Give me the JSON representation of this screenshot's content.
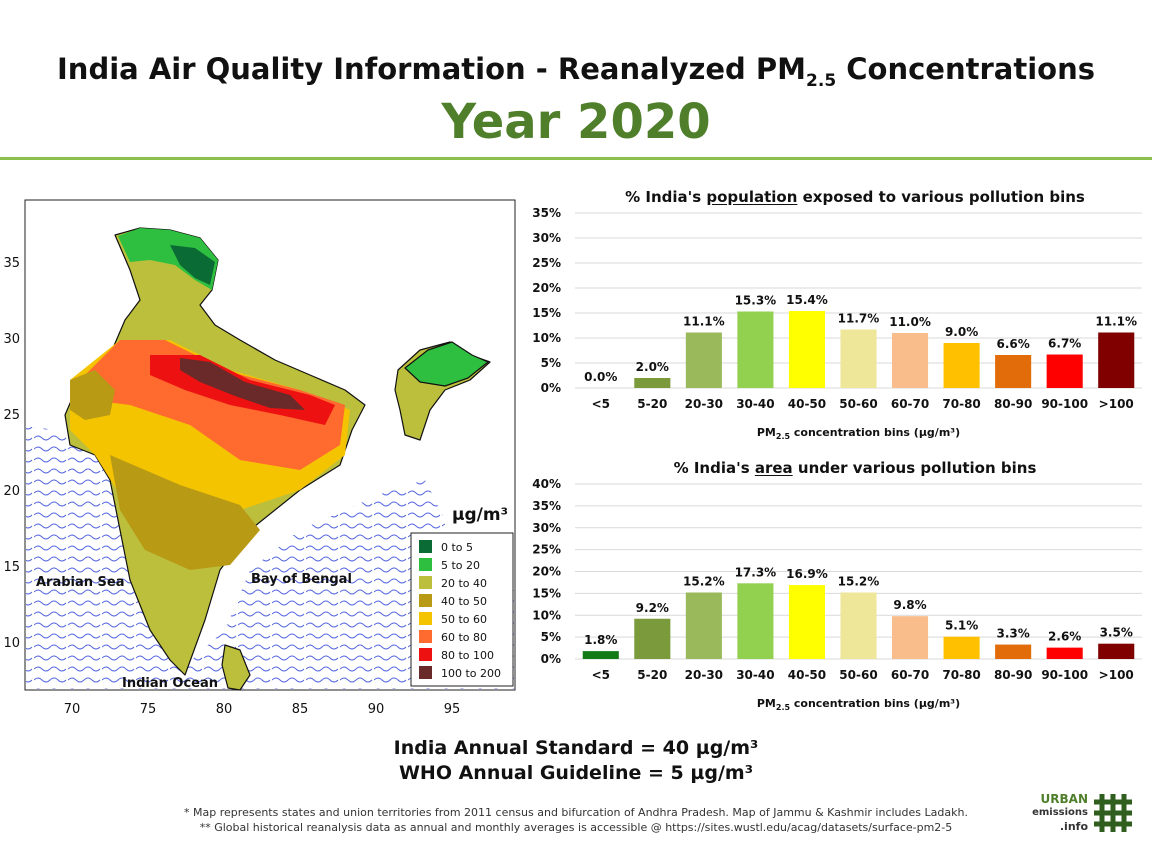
{
  "header": {
    "title_prefix": "India Air Quality Information - Reanalyzed PM",
    "title_sub": "2.5",
    "title_suffix": " Concentrations",
    "year_label": "Year 2020"
  },
  "map": {
    "x_ticks": [
      "70",
      "75",
      "80",
      "85",
      "90",
      "95"
    ],
    "y_ticks": [
      "35",
      "30",
      "25",
      "20",
      "15",
      "10"
    ],
    "labels": {
      "arabian_sea": "Arabian Sea",
      "bay_of_bengal": "Bay of Bengal",
      "indian_ocean": "Indian Ocean",
      "unit": "µg/m³"
    },
    "legend": [
      {
        "label": "0  to  5",
        "color": "#0b6b34"
      },
      {
        "label": "5  to  20",
        "color": "#2fbf40"
      },
      {
        "label": "20  to  40",
        "color": "#bcbf3c"
      },
      {
        "label": "40  to  50",
        "color": "#b89a14"
      },
      {
        "label": "50  to  60",
        "color": "#f5c400"
      },
      {
        "label": "60  to  80",
        "color": "#ff6a2e"
      },
      {
        "label": "80  to  100",
        "color": "#ee1111"
      },
      {
        "label": "100  to  200",
        "color": "#6b2a2a"
      }
    ]
  },
  "chart_data": [
    {
      "type": "bar",
      "title_prefix": "% India's ",
      "title_emph": "population",
      "title_suffix": " exposed to various pollution bins",
      "categories": [
        "<5",
        "5-20",
        "20-30",
        "30-40",
        "40-50",
        "50-60",
        "60-70",
        "70-80",
        "80-90",
        "90-100",
        ">100"
      ],
      "values": [
        0.0,
        2.0,
        11.1,
        15.3,
        15.4,
        11.7,
        11.0,
        9.0,
        6.6,
        6.7,
        11.1
      ],
      "value_labels": [
        "0.0%",
        "2.0%",
        "11.1%",
        "15.3%",
        "15.4%",
        "11.7%",
        "11.0%",
        "9.0%",
        "6.6%",
        "6.7%",
        "11.1%"
      ],
      "colors": [
        "#137a16",
        "#7a9a3c",
        "#9ab95a",
        "#92d050",
        "#ffff00",
        "#eee79a",
        "#f9bd8c",
        "#ffc000",
        "#e36c0a",
        "#ff0000",
        "#800000"
      ],
      "y_ticks": [
        "0%",
        "5%",
        "10%",
        "15%",
        "20%",
        "25%",
        "30%",
        "35%"
      ],
      "ylim": [
        0,
        35
      ],
      "xlabel_prefix": "PM",
      "xlabel_sub": "2.5",
      "xlabel_suffix": " concentration bins (µg/m³)"
    },
    {
      "type": "bar",
      "title_prefix": "% India's ",
      "title_emph": "area",
      "title_suffix": " under various pollution bins",
      "categories": [
        "<5",
        "5-20",
        "20-30",
        "30-40",
        "40-50",
        "50-60",
        "60-70",
        "70-80",
        "80-90",
        "90-100",
        ">100"
      ],
      "values": [
        1.8,
        9.2,
        15.2,
        17.3,
        16.9,
        15.2,
        9.8,
        5.1,
        3.3,
        2.6,
        3.5
      ],
      "value_labels": [
        "1.8%",
        "9.2%",
        "15.2%",
        "17.3%",
        "16.9%",
        "15.2%",
        "9.8%",
        "5.1%",
        "3.3%",
        "2.6%",
        "3.5%"
      ],
      "colors": [
        "#137a16",
        "#7a9a3c",
        "#9ab95a",
        "#92d050",
        "#ffff00",
        "#eee79a",
        "#f9bd8c",
        "#ffc000",
        "#e36c0a",
        "#ff0000",
        "#800000"
      ],
      "y_ticks": [
        "0%",
        "5%",
        "10%",
        "15%",
        "20%",
        "25%",
        "30%",
        "35%",
        "40%"
      ],
      "ylim": [
        0,
        40
      ],
      "xlabel_prefix": "PM",
      "xlabel_sub": "2.5",
      "xlabel_suffix": " concentration bins (µg/m³)"
    }
  ],
  "standards": {
    "india": "India Annual Standard = 40 µg/m³",
    "who": "WHO Annual Guideline = 5 µg/m³"
  },
  "footnotes": {
    "note1": "* Map represents states and union territories from 2011 census and bifurcation of Andhra Pradesh. Map of Jammu & Kashmir includes Ladakh.",
    "note2": "** Global historical reanalysis data as annual and monthly averages is accessible @ https://sites.wustl.edu/acag/datasets/surface-pm2-5"
  },
  "logo": {
    "line1": "URBAN",
    "line2": "emissions",
    "line3": ".info"
  }
}
